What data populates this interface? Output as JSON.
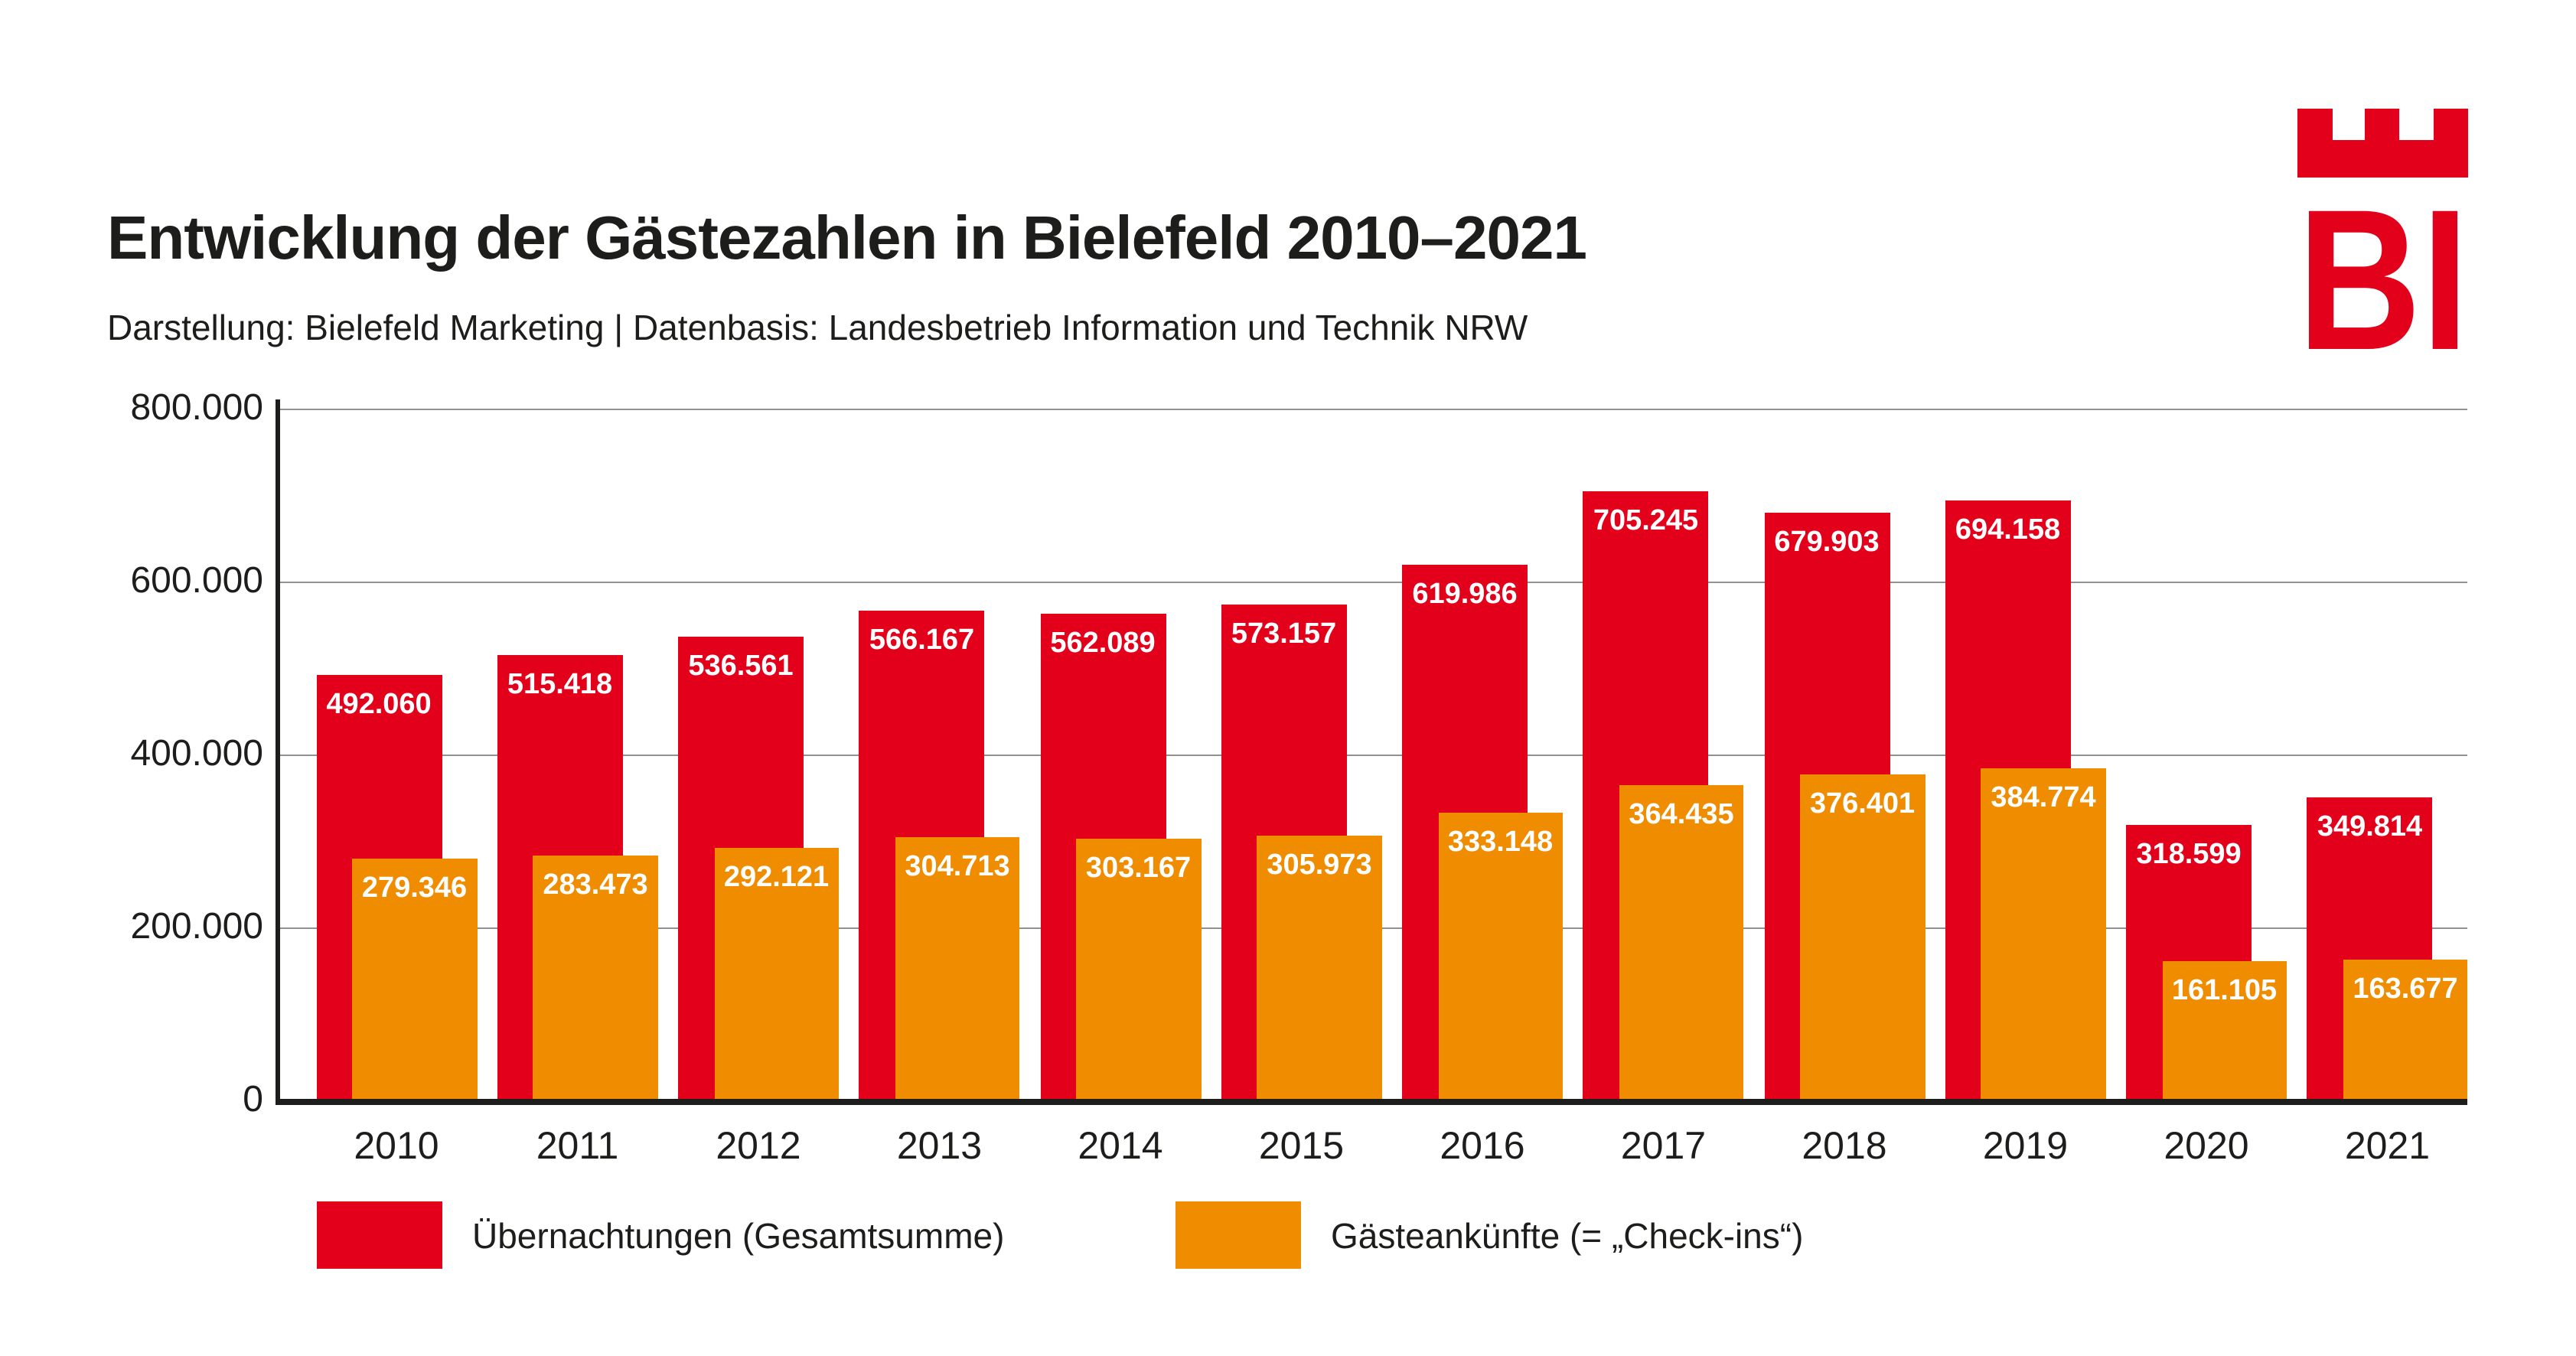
{
  "page": {
    "title": "Entwicklung der Gästezahlen in Bielefeld 2010–2021",
    "subtitle": "Darstellung: Bielefeld Marketing | Datenbasis: Landesbetrieb Information und Technik NRW",
    "background_color": "#ffffff",
    "text_color": "#1d1d1b"
  },
  "logo": {
    "letters": "BI",
    "color": "#e2001a"
  },
  "chart_data": {
    "type": "bar",
    "categories": [
      "2010",
      "2011",
      "2012",
      "2013",
      "2014",
      "2015",
      "2016",
      "2017",
      "2018",
      "2019",
      "2020",
      "2021"
    ],
    "series": [
      {
        "name": "Übernachtungen (Gesamtsumme)",
        "color": "#e2001a",
        "values": [
          492060,
          515418,
          536561,
          566167,
          562089,
          573157,
          619986,
          705245,
          679903,
          694158,
          318599,
          349814
        ],
        "labels": [
          "492.060",
          "515.418",
          "536.561",
          "566.167",
          "562.089",
          "573.157",
          "619.986",
          "705.245",
          "679.903",
          "694.158",
          "318.599",
          "349.814"
        ]
      },
      {
        "name": "Gästeankünfte (= „Check-ins“)",
        "color": "#f08c00",
        "values": [
          279346,
          283473,
          292121,
          304713,
          303167,
          305973,
          333148,
          364435,
          376401,
          384774,
          161105,
          163677
        ],
        "labels": [
          "279.346",
          "283.473",
          "292.121",
          "304.713",
          "303.167",
          "305.973",
          "333.148",
          "364.435",
          "376.401",
          "384.774",
          "161.105",
          "163.677"
        ]
      }
    ],
    "ylim": [
      0,
      800000
    ],
    "yticks": [
      {
        "value": 800000,
        "label": "800.000"
      },
      {
        "value": 600000,
        "label": "600.000"
      },
      {
        "value": 400000,
        "label": "400.000"
      },
      {
        "value": 200000,
        "label": "200.000"
      },
      {
        "value": 0,
        "label": "0"
      }
    ],
    "grid": true,
    "legend_position": "bottom",
    "value_labels": "inside-top",
    "axis_color": "#1d1d1b",
    "gridline_color": "#919191"
  }
}
